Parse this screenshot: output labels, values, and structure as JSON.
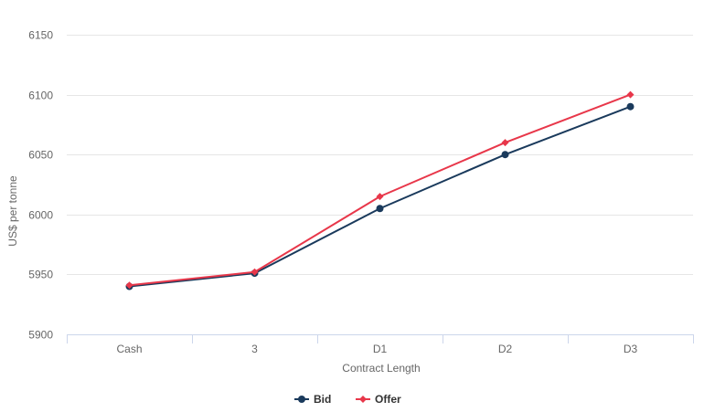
{
  "chart_data": {
    "type": "line",
    "title": "",
    "xlabel": "Contract Length",
    "ylabel": "US$ per tonne",
    "categories": [
      "Cash",
      "3",
      "D1",
      "D2",
      "D3"
    ],
    "ylim": [
      5900,
      6150
    ],
    "yticks": [
      5900,
      5950,
      6000,
      6050,
      6100,
      6150
    ],
    "grid": true,
    "legend": "bottom-center",
    "series": [
      {
        "name": "Bid",
        "color": "#1a3a5c",
        "marker": "circle",
        "values": [
          5940,
          5951,
          6005,
          6050,
          6090
        ]
      },
      {
        "name": "Offer",
        "color": "#e8374a",
        "marker": "diamond",
        "values": [
          5941,
          5952,
          6015,
          6060,
          6100
        ]
      }
    ]
  }
}
